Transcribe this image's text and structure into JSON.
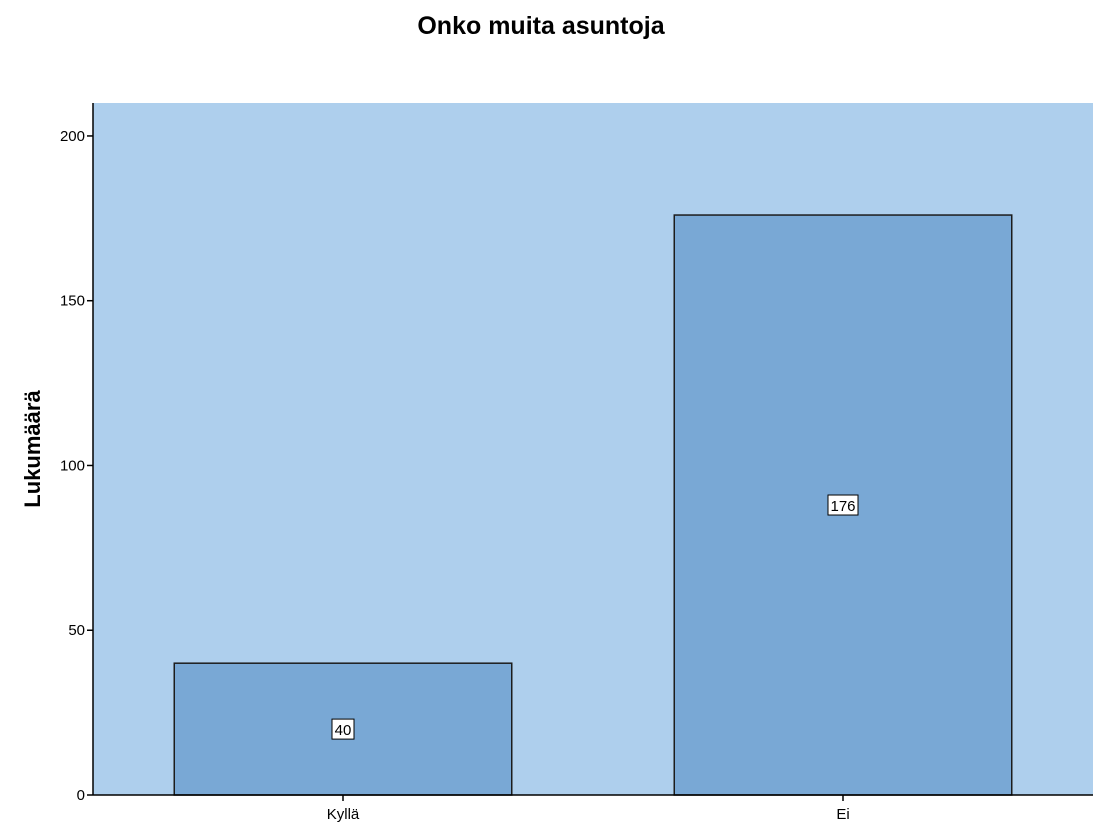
{
  "chart_data": {
    "type": "bar",
    "title": "Onko muita asuntoja",
    "xlabel": "",
    "ylabel": "Lukumäärä",
    "categories": [
      "Kyllä",
      "Ei"
    ],
    "values": [
      40,
      176
    ],
    "data_labels": [
      "40",
      "176"
    ],
    "ylim": [
      0,
      210
    ],
    "yticks": [
      0,
      50,
      100,
      150,
      200
    ],
    "grid": false,
    "legend": "none",
    "colors": {
      "plot_background": "#aecfed",
      "bar_fill": "#79a8d5",
      "bar_stroke": "#1c1c1c",
      "axis": "#000000",
      "label_box": "#ffffff"
    }
  }
}
